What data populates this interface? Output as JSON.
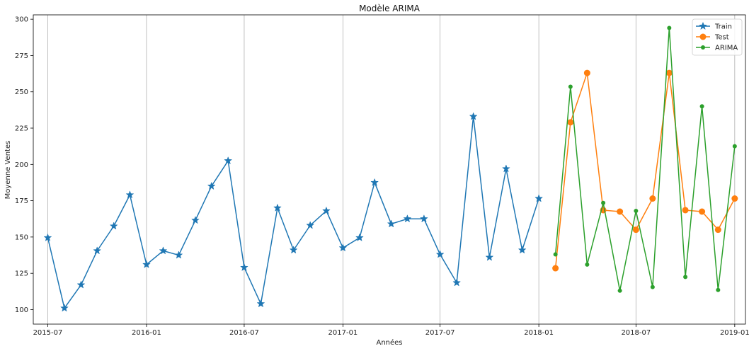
{
  "chart_data": {
    "type": "line",
    "title": "Modèle ARIMA",
    "xlabel": "Années",
    "ylabel": "Moyenne Ventes",
    "xlim": [
      "2015-06-04",
      "2019-01-21"
    ],
    "ylim": [
      90,
      303
    ],
    "yticks": [
      100,
      125,
      150,
      175,
      200,
      225,
      250,
      275,
      300
    ],
    "xticks": [
      "2015-07",
      "2016-01",
      "2016-07",
      "2017-01",
      "2017-07",
      "2018-01",
      "2018-07",
      "2019-01"
    ],
    "grid": "vertical",
    "legend_position": "top-right",
    "series": [
      {
        "name": "Train",
        "color": "#1f77b4",
        "marker": "star",
        "x": [
          "2015-07-01",
          "2015-08-01",
          "2015-09-01",
          "2015-10-01",
          "2015-11-01",
          "2015-12-01",
          "2016-01-01",
          "2016-02-01",
          "2016-03-01",
          "2016-04-01",
          "2016-05-01",
          "2016-06-01",
          "2016-07-01",
          "2016-08-01",
          "2016-09-01",
          "2016-10-01",
          "2016-11-01",
          "2016-12-01",
          "2017-01-01",
          "2017-02-01",
          "2017-03-01",
          "2017-04-01",
          "2017-05-01",
          "2017-06-01",
          "2017-07-01",
          "2017-08-01",
          "2017-09-01",
          "2017-10-01",
          "2017-11-01",
          "2017-12-01",
          "2018-01-01"
        ],
        "values": [
          149.5,
          101,
          117,
          140.5,
          157.5,
          179,
          131,
          140.5,
          137.5,
          161.5,
          185,
          202.5,
          129,
          104,
          170,
          141,
          158,
          168,
          142.5,
          149.5,
          187.5,
          159,
          162.5,
          162.5,
          138,
          118.5,
          233,
          136,
          197,
          141,
          176.5
        ]
      },
      {
        "name": "Test",
        "color": "#ff7f0e",
        "marker": "circle",
        "x": [
          "2018-02-01",
          "2018-03-01",
          "2018-04-01",
          "2018-05-01",
          "2018-06-01",
          "2018-07-01",
          "2018-08-01",
          "2018-09-01",
          "2018-10-01",
          "2018-11-01",
          "2018-12-01",
          "2019-01-01"
        ],
        "values": [
          128.5,
          229,
          263,
          168.5,
          167.5,
          155,
          176.5,
          263,
          168.5,
          167.5,
          155,
          176.5
        ]
      },
      {
        "name": "ARIMA",
        "color": "#2ca02c",
        "marker": "circle-small",
        "x": [
          "2018-02-01",
          "2018-03-01",
          "2018-04-01",
          "2018-05-01",
          "2018-06-01",
          "2018-07-01",
          "2018-08-01",
          "2018-09-01",
          "2018-10-01",
          "2018-11-01",
          "2018-12-01",
          "2019-01-01"
        ],
        "values": [
          138,
          253.5,
          131,
          173.5,
          113,
          168,
          115.5,
          294,
          122.5,
          240,
          113.5,
          212.5
        ]
      }
    ]
  }
}
